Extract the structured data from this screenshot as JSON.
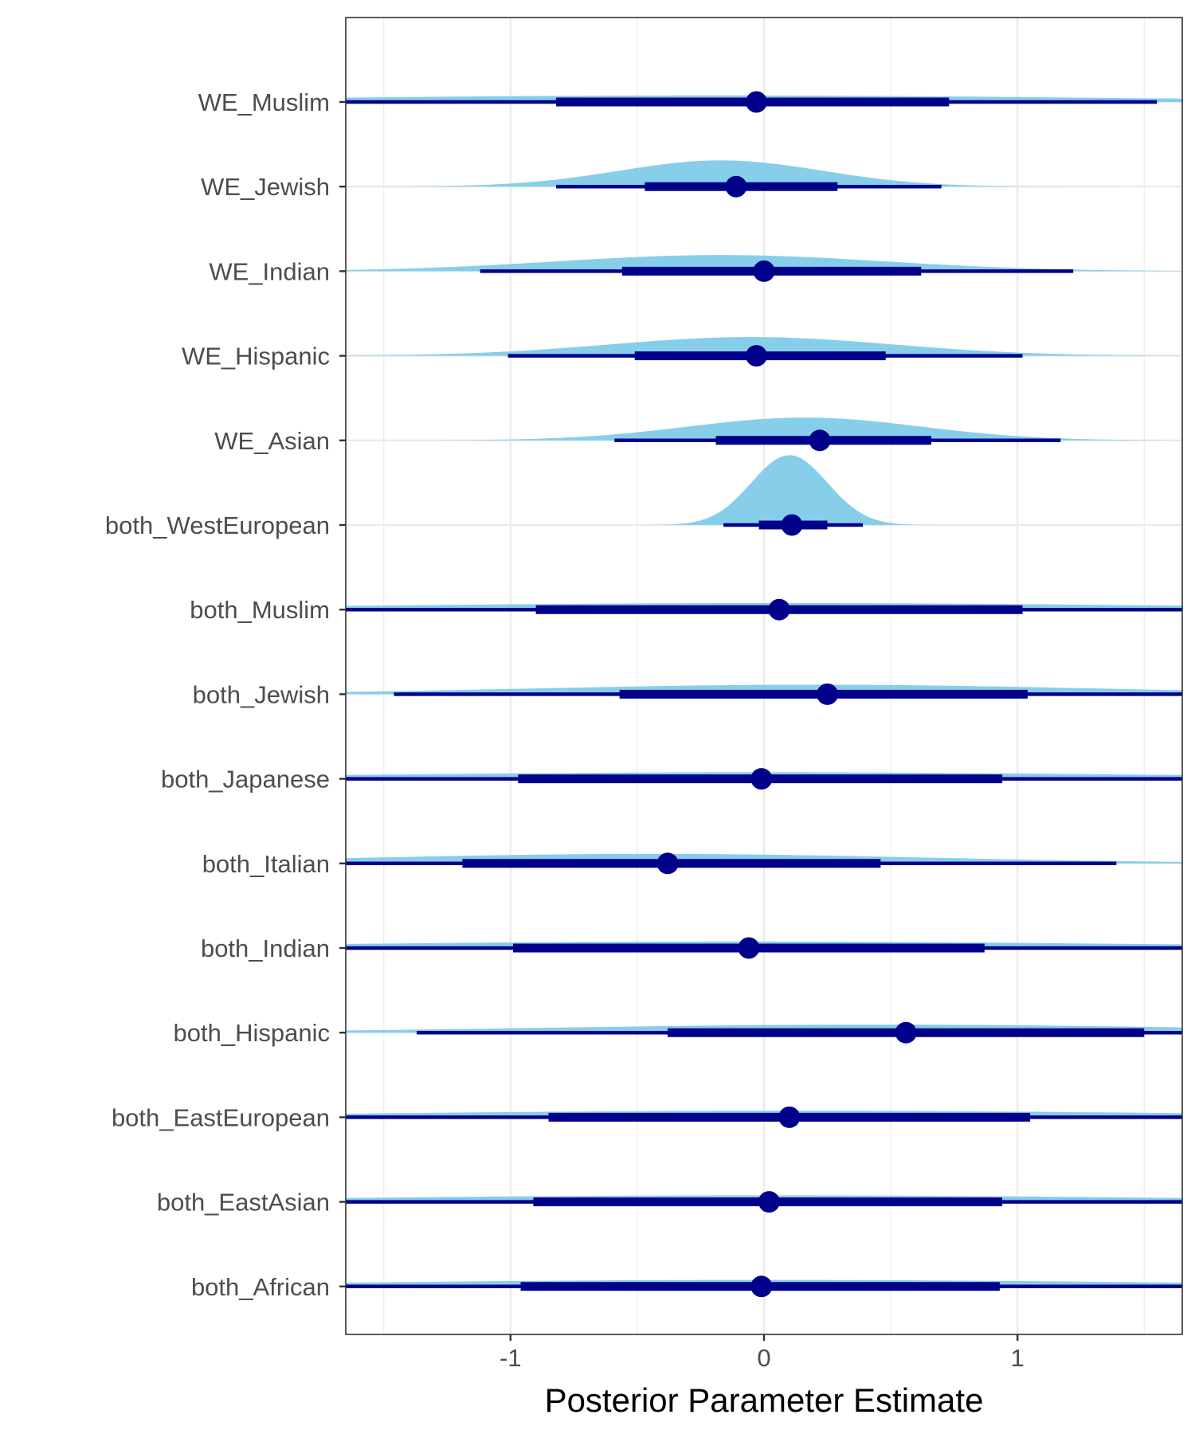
{
  "chart_data": {
    "type": "halfeye",
    "title": "",
    "xlabel": "Posterior Parameter Estimate",
    "ylabel": "",
    "xlim": [
      -1.65,
      1.65
    ],
    "x_ticks": [
      -1,
      0,
      1
    ],
    "x_tick_labels": [
      "-1",
      "0",
      "1"
    ],
    "grid": true,
    "legend": "none",
    "colors": {
      "density": "#87CEEB",
      "interval": "#00008B",
      "panel_border": "#333333",
      "grid": "#ebebeb"
    },
    "parameters": [
      {
        "label": "WE_Muslim",
        "median": -0.03,
        "inner": [
          -0.82,
          0.73
        ],
        "outer": [
          -1.65,
          1.55
        ],
        "mode": -0.2,
        "sd": 1.6
      },
      {
        "label": "WE_Jewish",
        "median": -0.11,
        "inner": [
          -0.47,
          0.29
        ],
        "outer": [
          -0.82,
          0.7
        ],
        "mode": -0.17,
        "sd": 0.4
      },
      {
        "label": "WE_Indian",
        "median": 0.0,
        "inner": [
          -0.56,
          0.62
        ],
        "outer": [
          -1.12,
          1.22
        ],
        "mode": -0.17,
        "sd": 0.65
      },
      {
        "label": "WE_Hispanic",
        "median": -0.03,
        "inner": [
          -0.51,
          0.48
        ],
        "outer": [
          -1.01,
          1.02
        ],
        "mode": -0.05,
        "sd": 0.56
      },
      {
        "label": "WE_Asian",
        "median": 0.22,
        "inner": [
          -0.19,
          0.66
        ],
        "outer": [
          -0.59,
          1.17
        ],
        "mode": 0.16,
        "sd": 0.46
      },
      {
        "label": "both_WestEuropean",
        "median": 0.11,
        "inner": [
          -0.02,
          0.25
        ],
        "outer": [
          -0.16,
          0.39
        ],
        "mode": 0.1,
        "sd": 0.15
      },
      {
        "label": "both_Muslim",
        "median": 0.06,
        "inner": [
          -0.9,
          1.02
        ],
        "outer": [
          -1.65,
          1.65
        ],
        "mode": 0.05,
        "sd": 1.6
      },
      {
        "label": "both_Jewish",
        "median": 0.25,
        "inner": [
          -0.57,
          1.04
        ],
        "outer": [
          -1.46,
          1.65
        ],
        "mode": 0.2,
        "sd": 1.1
      },
      {
        "label": "both_Japanese",
        "median": -0.01,
        "inner": [
          -0.97,
          0.94
        ],
        "outer": [
          -1.65,
          1.65
        ],
        "mode": -0.02,
        "sd": 1.6
      },
      {
        "label": "both_Italian",
        "median": -0.38,
        "inner": [
          -1.19,
          0.46
        ],
        "outer": [
          -1.65,
          1.39
        ],
        "mode": -0.45,
        "sd": 1.1
      },
      {
        "label": "both_Indian",
        "median": -0.06,
        "inner": [
          -0.99,
          0.87
        ],
        "outer": [
          -1.65,
          1.65
        ],
        "mode": -0.1,
        "sd": 1.6
      },
      {
        "label": "both_Hispanic",
        "median": 0.56,
        "inner": [
          -0.38,
          1.5
        ],
        "outer": [
          -1.37,
          1.65
        ],
        "mode": 0.45,
        "sd": 1.3
      },
      {
        "label": "both_EastEuropean",
        "median": 0.1,
        "inner": [
          -0.85,
          1.05
        ],
        "outer": [
          -1.65,
          1.65
        ],
        "mode": 0.1,
        "sd": 1.6
      },
      {
        "label": "both_EastAsian",
        "median": 0.02,
        "inner": [
          -0.91,
          0.94
        ],
        "outer": [
          -1.65,
          1.65
        ],
        "mode": 0.0,
        "sd": 1.6
      },
      {
        "label": "both_African",
        "median": -0.01,
        "inner": [
          -0.96,
          0.93
        ],
        "outer": [
          -1.65,
          1.65
        ],
        "mode": 0.0,
        "sd": 1.6
      }
    ]
  }
}
